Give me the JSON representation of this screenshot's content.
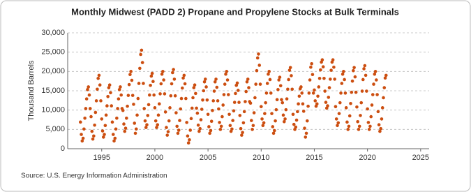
{
  "chart_data": {
    "type": "scatter",
    "title": "Monthly Midwest (PADD 2) Propane and Propylene Stocks at Bulk Terminals",
    "y_label": "Thousand Barrels",
    "source": "Source: U.S. Energy Information Administration",
    "color": "#cc4e10",
    "xlim": [
      1991.8,
      2025.8
    ],
    "xticks": [
      1995,
      2000,
      2005,
      2010,
      2015,
      2020,
      2025
    ],
    "ylim": [
      0,
      30000
    ],
    "yticks": [
      {
        "value": 0,
        "label": "0"
      },
      {
        "value": 5000,
        "label": "5,000"
      },
      {
        "value": 10000,
        "label": "10,000"
      },
      {
        "value": 15000,
        "label": "15,000"
      },
      {
        "value": 20000,
        "label": "20,000"
      },
      {
        "value": 25000,
        "label": "25,000"
      },
      {
        "value": 30000,
        "label": "30,000"
      }
    ],
    "grid": true,
    "x": [
      "1993-01",
      "1993-02",
      "1993-03",
      "1993-04",
      "1993-05",
      "1993-06",
      "1993-07",
      "1993-08",
      "1993-09",
      "1993-10",
      "1993-11",
      "1993-12",
      "1994-01",
      "1994-02",
      "1994-03",
      "1994-04",
      "1994-05",
      "1994-06",
      "1994-07",
      "1994-08",
      "1994-09",
      "1994-10",
      "1994-11",
      "1994-12",
      "1995-01",
      "1995-02",
      "1995-03",
      "1995-04",
      "1995-05",
      "1995-06",
      "1995-07",
      "1995-08",
      "1995-09",
      "1995-10",
      "1995-11",
      "1995-12",
      "1996-01",
      "1996-02",
      "1996-03",
      "1996-04",
      "1996-05",
      "1996-06",
      "1996-07",
      "1996-08",
      "1996-09",
      "1996-10",
      "1996-11",
      "1996-12",
      "1997-01",
      "1997-02",
      "1997-03",
      "1997-04",
      "1997-05",
      "1997-06",
      "1997-07",
      "1997-08",
      "1997-09",
      "1997-10",
      "1997-11",
      "1997-12",
      "1998-01",
      "1998-02",
      "1998-03",
      "1998-04",
      "1998-05",
      "1998-06",
      "1998-07",
      "1998-08",
      "1998-09",
      "1998-10",
      "1998-11",
      "1998-12",
      "1999-01",
      "1999-02",
      "1999-03",
      "1999-04",
      "1999-05",
      "1999-06",
      "1999-07",
      "1999-08",
      "1999-09",
      "1999-10",
      "1999-11",
      "1999-12",
      "2000-01",
      "2000-02",
      "2000-03",
      "2000-04",
      "2000-05",
      "2000-06",
      "2000-07",
      "2000-08",
      "2000-09",
      "2000-10",
      "2000-11",
      "2000-12",
      "2001-01",
      "2001-02",
      "2001-03",
      "2001-04",
      "2001-05",
      "2001-06",
      "2001-07",
      "2001-08",
      "2001-09",
      "2001-10",
      "2001-11",
      "2001-12",
      "2002-01",
      "2002-02",
      "2002-03",
      "2002-04",
      "2002-05",
      "2002-06",
      "2002-07",
      "2002-08",
      "2002-09",
      "2002-10",
      "2002-11",
      "2002-12",
      "2003-01",
      "2003-02",
      "2003-03",
      "2003-04",
      "2003-05",
      "2003-06",
      "2003-07",
      "2003-08",
      "2003-09",
      "2003-10",
      "2003-11",
      "2003-12",
      "2004-01",
      "2004-02",
      "2004-03",
      "2004-04",
      "2004-05",
      "2004-06",
      "2004-07",
      "2004-08",
      "2004-09",
      "2004-10",
      "2004-11",
      "2004-12",
      "2005-01",
      "2005-02",
      "2005-03",
      "2005-04",
      "2005-05",
      "2005-06",
      "2005-07",
      "2005-08",
      "2005-09",
      "2005-10",
      "2005-11",
      "2005-12",
      "2006-01",
      "2006-02",
      "2006-03",
      "2006-04",
      "2006-05",
      "2006-06",
      "2006-07",
      "2006-08",
      "2006-09",
      "2006-10",
      "2006-11",
      "2006-12",
      "2007-01",
      "2007-02",
      "2007-03",
      "2007-04",
      "2007-05",
      "2007-06",
      "2007-07",
      "2007-08",
      "2007-09",
      "2007-10",
      "2007-11",
      "2007-12",
      "2008-01",
      "2008-02",
      "2008-03",
      "2008-04",
      "2008-05",
      "2008-06",
      "2008-07",
      "2008-08",
      "2008-09",
      "2008-10",
      "2008-11",
      "2008-12",
      "2009-01",
      "2009-02",
      "2009-03",
      "2009-04",
      "2009-05",
      "2009-06",
      "2009-07",
      "2009-08",
      "2009-09",
      "2009-10",
      "2009-11",
      "2009-12",
      "2010-01",
      "2010-02",
      "2010-03",
      "2010-04",
      "2010-05",
      "2010-06",
      "2010-07",
      "2010-08",
      "2010-09",
      "2010-10",
      "2010-11",
      "2010-12",
      "2011-01",
      "2011-02",
      "2011-03",
      "2011-04",
      "2011-05",
      "2011-06",
      "2011-07",
      "2011-08",
      "2011-09",
      "2011-10",
      "2011-11",
      "2011-12",
      "2012-01",
      "2012-02",
      "2012-03",
      "2012-04",
      "2012-05",
      "2012-06",
      "2012-07",
      "2012-08",
      "2012-09",
      "2012-10",
      "2012-11",
      "2012-12",
      "2013-01",
      "2013-02",
      "2013-03",
      "2013-04",
      "2013-05",
      "2013-06",
      "2013-07",
      "2013-08",
      "2013-09",
      "2013-10",
      "2013-11",
      "2013-12",
      "2014-01",
      "2014-02",
      "2014-03",
      "2014-04",
      "2014-05",
      "2014-06",
      "2014-07",
      "2014-08",
      "2014-09",
      "2014-10",
      "2014-11",
      "2014-12",
      "2015-01",
      "2015-02",
      "2015-03",
      "2015-04",
      "2015-05",
      "2015-06",
      "2015-07",
      "2015-08",
      "2015-09",
      "2015-10",
      "2015-11",
      "2015-12",
      "2016-01",
      "2016-02",
      "2016-03",
      "2016-04",
      "2016-05",
      "2016-06",
      "2016-07",
      "2016-08",
      "2016-09",
      "2016-10",
      "2016-11",
      "2016-12",
      "2017-01",
      "2017-02",
      "2017-03",
      "2017-04",
      "2017-05",
      "2017-06",
      "2017-07",
      "2017-08",
      "2017-09",
      "2017-10",
      "2017-11",
      "2017-12",
      "2018-01",
      "2018-02",
      "2018-03",
      "2018-04",
      "2018-05",
      "2018-06",
      "2018-07",
      "2018-08",
      "2018-09",
      "2018-10",
      "2018-11",
      "2018-12",
      "2019-01",
      "2019-02",
      "2019-03",
      "2019-04",
      "2019-05",
      "2019-06",
      "2019-07",
      "2019-08",
      "2019-09",
      "2019-10",
      "2019-11",
      "2019-12",
      "2020-01",
      "2020-02",
      "2020-03",
      "2020-04",
      "2020-05",
      "2020-06",
      "2020-07",
      "2020-08",
      "2020-09",
      "2020-10",
      "2020-11",
      "2020-12",
      "2021-01",
      "2021-02",
      "2021-03",
      "2021-04",
      "2021-05",
      "2021-06",
      "2021-07",
      "2021-08",
      "2021-09",
      "2021-10"
    ],
    "values": [
      6900,
      3700,
      2000,
      2700,
      5100,
      7900,
      10400,
      12900,
      15300,
      16000,
      13900,
      10400,
      8300,
      4500,
      2500,
      3300,
      6100,
      9400,
      12400,
      15400,
      18200,
      19000,
      16500,
      12400,
      7700,
      4600,
      3000,
      3700,
      6000,
      8700,
      11100,
      13500,
      15800,
      16500,
      14500,
      11100,
      6900,
      3700,
      2000,
      2700,
      5100,
      7900,
      10400,
      12900,
      15300,
      16000,
      13900,
      10400,
      9900,
      6400,
      4500,
      5300,
      7900,
      11000,
      13800,
      16600,
      19200,
      20000,
      17700,
      13800,
      11500,
      6600,
      4000,
      5100,
      8700,
      13000,
      16900,
      20800,
      24400,
      25500,
      22300,
      16900,
      10400,
      7200,
      5500,
      6200,
      8600,
      11400,
      13900,
      16400,
      18800,
      19500,
      17400,
      13900,
      10600,
      7200,
      5500,
      6200,
      8700,
      11600,
      14200,
      16800,
      19300,
      20000,
      17800,
      14200,
      9500,
      5500,
      3500,
      4400,
      7200,
      10600,
      13700,
      16800,
      19700,
      20500,
      18000,
      13700,
      9300,
      5800,
      4000,
      4800,
      7300,
      10300,
      13000,
      15700,
      18300,
      19000,
      16800,
      13000,
      6800,
      3300,
      1500,
      2300,
      4800,
      7800,
      10500,
      13200,
      15800,
      16500,
      14300,
      10500,
      9200,
      6100,
      4500,
      5200,
      7500,
      10200,
      12600,
      15000,
      17300,
      18000,
      16000,
      12600,
      8900,
      5700,
      4000,
      4700,
      7100,
      9900,
      12400,
      14900,
      17300,
      18000,
      15900,
      12400,
      10300,
      6800,
      5000,
      5800,
      8300,
      11300,
      14000,
      16700,
      19300,
      20000,
      17800,
      14000,
      8900,
      6000,
      4500,
      5100,
      7300,
      9800,
      12000,
      14300,
      16400,
      17000,
      15100,
      12000,
      8600,
      5200,
      3500,
      4200,
      6700,
      9600,
      12200,
      14800,
      17300,
      18000,
      15800,
      12200,
      11800,
      7300,
      5000,
      6000,
      9300,
      13200,
      16700,
      20200,
      23500,
      24500,
      21600,
      16700,
      10900,
      7700,
      6000,
      6700,
      9100,
      11900,
      14400,
      16900,
      19300,
      20000,
      17900,
      14400,
      9100,
      5700,
      4000,
      4700,
      7200,
      10100,
      12700,
      15300,
      17800,
      18500,
      16300,
      12700,
      11900,
      8700,
      7000,
      7700,
      10100,
      12900,
      15400,
      17900,
      20300,
      21000,
      18900,
      15400,
      8900,
      6300,
      5000,
      5600,
      7400,
      9600,
      11600,
      13600,
      15500,
      16000,
      14400,
      11600,
      9700,
      5300,
      3000,
      4000,
      7200,
      11000,
      14400,
      17800,
      21100,
      22000,
      19200,
      14400,
      15200,
      12400,
      11000,
      11600,
      13600,
      16000,
      18200,
      20400,
      22400,
      23000,
      21200,
      18200,
      14900,
      12000,
      10500,
      11100,
      13300,
      15800,
      18000,
      20300,
      22400,
      23000,
      21100,
      18000,
      10900,
      7700,
      6000,
      6700,
      9100,
      11900,
      14400,
      16900,
      19300,
      20000,
      17900,
      14400,
      10600,
      6900,
      5000,
      5800,
      8500,
      11700,
      14600,
      17500,
      20200,
      21000,
      18600,
      14600,
      10800,
      7000,
      5000,
      5800,
      8600,
      11900,
      14900,
      17900,
      20700,
      21500,
      19000,
      14900,
      10300,
      6800,
      5000,
      5800,
      8300,
      11300,
      14000,
      16700,
      19300,
      20000,
      17800,
      14000,
      9600,
      6200,
      4500,
      5200,
      7700,
      10600,
      13200,
      15800,
      18300,
      19000
    ]
  }
}
